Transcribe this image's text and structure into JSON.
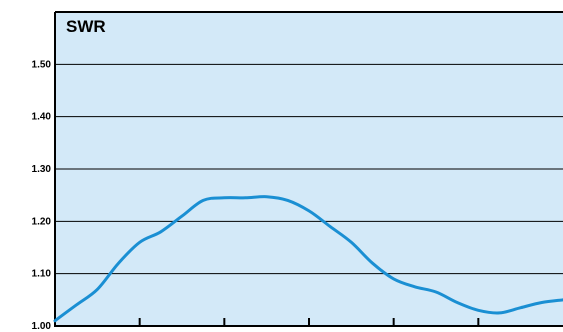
{
  "chart_data": {
    "type": "line",
    "title": "SWR",
    "xlabel": "",
    "ylabel": "",
    "ylim": [
      1.0,
      1.6
    ],
    "yticks": [
      1.0,
      1.1,
      1.2,
      1.3,
      1.4,
      1.5
    ],
    "ytick_labels": [
      "1.00",
      "1.10",
      "1.20",
      "1.30",
      "1.40",
      "1.50"
    ],
    "xlim": [
      0,
      6
    ],
    "xticks": [
      1,
      2,
      3,
      4,
      5
    ],
    "grid": true,
    "series": [
      {
        "x": [
          0.0,
          0.25,
          0.5,
          0.75,
          1.0,
          1.25,
          1.5,
          1.75,
          2.0,
          2.25,
          2.5,
          2.75,
          3.0,
          3.25,
          3.5,
          3.75,
          4.0,
          4.25,
          4.5,
          4.75,
          5.0,
          5.25,
          5.5,
          5.75,
          6.0
        ],
        "y": [
          1.01,
          1.04,
          1.07,
          1.12,
          1.16,
          1.18,
          1.21,
          1.24,
          1.245,
          1.245,
          1.247,
          1.24,
          1.22,
          1.19,
          1.16,
          1.12,
          1.09,
          1.075,
          1.065,
          1.045,
          1.03,
          1.025,
          1.035,
          1.045,
          1.05
        ]
      }
    ],
    "colors": {
      "background": "#d3e9f8",
      "line": "#1a8fd3",
      "grid": "#000000",
      "axis": "#000000"
    }
  }
}
